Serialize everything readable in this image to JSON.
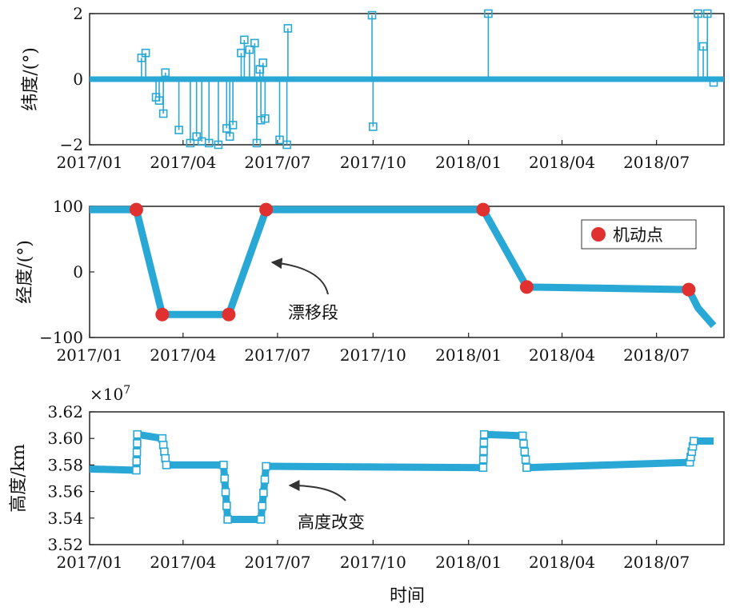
{
  "x_ticks": [
    "2017/01",
    "2017/04",
    "2017/07",
    "2017/10",
    "2018/01",
    "2018/04",
    "2018/07"
  ],
  "xlabel": "时间",
  "colors": {
    "series": "#29a8d6",
    "maneuver": "#e03030",
    "axis": "#222222",
    "arrow": "#444444"
  },
  "chart_data": [
    {
      "type": "scatter",
      "ylabel": "纬度/(°)",
      "ylim": [
        -2,
        2
      ],
      "yticks": [
        "2",
        "0",
        "−2"
      ],
      "ytick_values": [
        2,
        0,
        -2
      ],
      "baseline": 0,
      "spikes": [
        {
          "x": "2017-02-20",
          "y": 0.65
        },
        {
          "x": "2017-02-24",
          "y": 0.8
        },
        {
          "x": "2017-03-06",
          "y": -0.55
        },
        {
          "x": "2017-03-09",
          "y": -0.65
        },
        {
          "x": "2017-03-13",
          "y": -1.05
        },
        {
          "x": "2017-03-15",
          "y": 0.2
        },
        {
          "x": "2017-03-28",
          "y": -1.55
        },
        {
          "x": "2017-04-08",
          "y": -1.95
        },
        {
          "x": "2017-04-14",
          "y": -1.75
        },
        {
          "x": "2017-04-19",
          "y": -1.9
        },
        {
          "x": "2017-04-26",
          "y": -1.95
        },
        {
          "x": "2017-05-05",
          "y": -2.0
        },
        {
          "x": "2017-05-13",
          "y": -1.5
        },
        {
          "x": "2017-05-16",
          "y": -1.75
        },
        {
          "x": "2017-05-19",
          "y": -1.4
        },
        {
          "x": "2017-05-27",
          "y": 0.8
        },
        {
          "x": "2017-05-30",
          "y": 1.2
        },
        {
          "x": "2017-06-04",
          "y": 0.9
        },
        {
          "x": "2017-06-09",
          "y": 1.1
        },
        {
          "x": "2017-06-11",
          "y": -1.95
        },
        {
          "x": "2017-06-14",
          "y": 0.3
        },
        {
          "x": "2017-06-15",
          "y": -1.25
        },
        {
          "x": "2017-06-17",
          "y": 0.5
        },
        {
          "x": "2017-06-19",
          "y": -1.2
        },
        {
          "x": "2017-07-03",
          "y": -1.85
        },
        {
          "x": "2017-07-10",
          "y": -2.05
        },
        {
          "x": "2017-07-11",
          "y": 1.55
        },
        {
          "x": "2017-09-30",
          "y": 1.95
        },
        {
          "x": "2017-10-01",
          "y": -1.45
        },
        {
          "x": "2018-01-20",
          "y": 2.0
        },
        {
          "x": "2018-08-10",
          "y": 2.0
        },
        {
          "x": "2018-08-15",
          "y": 1.0
        },
        {
          "x": "2018-08-19",
          "y": 2.0
        },
        {
          "x": "2018-08-25",
          "y": -0.1
        }
      ]
    },
    {
      "type": "line",
      "ylabel": "经度/(°)",
      "ylim": [
        -100,
        100
      ],
      "yticks": [
        "100",
        "0",
        "−100"
      ],
      "ytick_values": [
        100,
        0,
        -100
      ],
      "points": [
        {
          "x": "2017-01-01",
          "y": 95
        },
        {
          "x": "2017-02-15",
          "y": 95
        },
        {
          "x": "2017-03-12",
          "y": -65
        },
        {
          "x": "2017-05-15",
          "y": -65
        },
        {
          "x": "2017-06-20",
          "y": 95
        },
        {
          "x": "2018-01-15",
          "y": 95
        },
        {
          "x": "2018-02-26",
          "y": -23
        },
        {
          "x": "2018-08-01",
          "y": -27
        },
        {
          "x": "2018-08-10",
          "y": -55
        },
        {
          "x": "2018-08-25",
          "y": -82
        }
      ],
      "maneuvers": [
        {
          "x": "2017-02-15",
          "y": 95
        },
        {
          "x": "2017-03-12",
          "y": -65
        },
        {
          "x": "2017-05-15",
          "y": -65
        },
        {
          "x": "2017-06-20",
          "y": 95
        },
        {
          "x": "2018-01-15",
          "y": 95
        },
        {
          "x": "2018-02-26",
          "y": -23
        },
        {
          "x": "2018-08-01",
          "y": -27
        }
      ],
      "legend": "机动点",
      "annotation": "漂移段"
    },
    {
      "type": "line",
      "ylabel": "高度/km",
      "yscale_label": "×10",
      "yscale_exp": "7",
      "ylim": [
        3.52,
        3.62
      ],
      "yticks": [
        "3.62",
        "3.60",
        "3.58",
        "3.56",
        "3.54",
        "3.52"
      ],
      "ytick_values": [
        3.62,
        3.6,
        3.58,
        3.56,
        3.54,
        3.52
      ],
      "points": [
        {
          "x": "2017-01-01",
          "y": 3.577
        },
        {
          "x": "2017-02-15",
          "y": 3.576
        },
        {
          "x": "2017-02-16",
          "y": 3.603
        },
        {
          "x": "2017-03-12",
          "y": 3.6
        },
        {
          "x": "2017-03-16",
          "y": 3.58
        },
        {
          "x": "2017-05-10",
          "y": 3.58
        },
        {
          "x": "2017-05-14",
          "y": 3.539
        },
        {
          "x": "2017-06-15",
          "y": 3.539
        },
        {
          "x": "2017-06-20",
          "y": 3.579
        },
        {
          "x": "2018-01-15",
          "y": 3.578
        },
        {
          "x": "2018-01-16",
          "y": 3.603
        },
        {
          "x": "2018-02-22",
          "y": 3.602
        },
        {
          "x": "2018-02-26",
          "y": 3.578
        },
        {
          "x": "2018-08-02",
          "y": 3.582
        },
        {
          "x": "2018-08-06",
          "y": 3.598
        },
        {
          "x": "2018-08-25",
          "y": 3.598
        }
      ],
      "annotation": "高度改变"
    }
  ]
}
